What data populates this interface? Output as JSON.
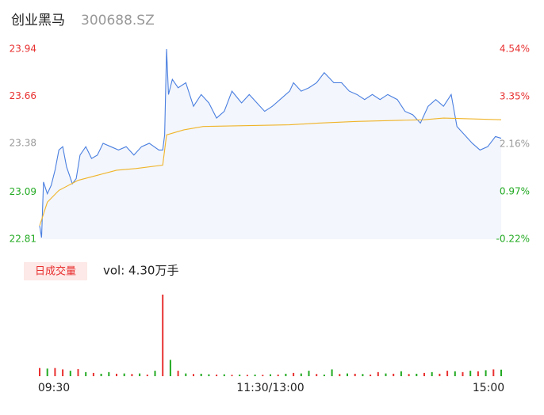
{
  "chart_data": {
    "type": "intraday",
    "title": "创业黑马",
    "subtitle": "300688.SZ",
    "xlim": [
      0,
      240
    ],
    "xticks": [
      {
        "value": 0,
        "label": "09:30"
      },
      {
        "value": 120,
        "label": "11:30/13:00"
      },
      {
        "value": 240,
        "label": "15:00"
      }
    ],
    "ylim": [
      22.81,
      23.94
    ],
    "yticks": [
      22.81,
      23.09,
      23.38,
      23.66,
      23.94
    ],
    "ytick_colors": [
      "#22aa22",
      "#22aa22",
      "#999999",
      "#e83030",
      "#e83030"
    ],
    "y2lim": [
      -0.22,
      4.54
    ],
    "y2ticks": [
      {
        "value": -0.22,
        "label": "-0.22%"
      },
      {
        "value": 0.97,
        "label": "0.97%"
      },
      {
        "value": 2.16,
        "label": "2.16%"
      },
      {
        "value": 3.35,
        "label": "3.35%"
      },
      {
        "value": 4.54,
        "label": "4.54%"
      }
    ],
    "series": [
      {
        "color": "#4a7fe0",
        "x": [
          0,
          1,
          2,
          4,
          6,
          8,
          10,
          12,
          14,
          17,
          19,
          21,
          24,
          27,
          30,
          33,
          37,
          41,
          45,
          49,
          53,
          57,
          62,
          64,
          65,
          66,
          67,
          69,
          72,
          76,
          80,
          84,
          88,
          92,
          96,
          100,
          105,
          109,
          113,
          117,
          121,
          125,
          130,
          132,
          136,
          140,
          144,
          148,
          153,
          157,
          161,
          165,
          169,
          173,
          177,
          181,
          186,
          190,
          194,
          198,
          202,
          206,
          210,
          214,
          217,
          221,
          225,
          229,
          233,
          237,
          240
        ],
        "values": [
          22.89,
          22.82,
          23.15,
          23.08,
          23.13,
          23.22,
          23.34,
          23.36,
          23.24,
          23.14,
          23.17,
          23.31,
          23.36,
          23.29,
          23.31,
          23.38,
          23.36,
          23.34,
          23.36,
          23.31,
          23.36,
          23.38,
          23.34,
          23.34,
          23.43,
          23.94,
          23.67,
          23.76,
          23.71,
          23.74,
          23.6,
          23.67,
          23.62,
          23.53,
          23.57,
          23.69,
          23.62,
          23.67,
          23.62,
          23.57,
          23.6,
          23.64,
          23.69,
          23.74,
          23.69,
          23.71,
          23.74,
          23.8,
          23.74,
          23.74,
          23.69,
          23.67,
          23.64,
          23.67,
          23.64,
          23.67,
          23.64,
          23.57,
          23.55,
          23.5,
          23.6,
          23.64,
          23.6,
          23.67,
          23.48,
          23.43,
          23.38,
          23.34,
          23.36,
          23.42,
          23.41
        ]
      },
      {
        "color": "#f0b429",
        "x": [
          0,
          4,
          10,
          20,
          30,
          40,
          50,
          64,
          66,
          75,
          85,
          130,
          145,
          165,
          200,
          210,
          240
        ],
        "values": [
          22.89,
          23.03,
          23.1,
          23.16,
          23.19,
          23.22,
          23.23,
          23.25,
          23.43,
          23.46,
          23.48,
          23.49,
          23.5,
          23.51,
          23.52,
          23.53,
          23.52
        ]
      }
    ],
    "area_color": "#f3f6fc",
    "volume_label": "日成交量",
    "volume_text": "vol: 4.30万手",
    "volume": {
      "x": [
        0,
        4,
        8,
        12,
        16,
        20,
        24,
        28,
        32,
        36,
        40,
        44,
        48,
        52,
        56,
        60,
        64,
        68,
        72,
        76,
        80,
        84,
        88,
        92,
        96,
        100,
        104,
        108,
        112,
        116,
        120,
        124,
        128,
        132,
        136,
        140,
        144,
        148,
        152,
        156,
        160,
        164,
        168,
        172,
        176,
        180,
        184,
        188,
        192,
        196,
        200,
        204,
        208,
        212,
        216,
        220,
        224,
        228,
        232,
        236,
        240
      ],
      "values": [
        300,
        280,
        300,
        250,
        200,
        260,
        150,
        120,
        90,
        150,
        90,
        100,
        80,
        100,
        60,
        200,
        3000,
        600,
        200,
        100,
        80,
        90,
        70,
        60,
        70,
        50,
        60,
        50,
        60,
        50,
        70,
        60,
        90,
        120,
        100,
        200,
        80,
        60,
        250,
        80,
        100,
        90,
        80,
        60,
        150,
        100,
        90,
        180,
        80,
        90,
        120,
        150,
        90,
        200,
        180,
        150,
        200,
        180,
        220,
        250,
        240
      ],
      "colors": [
        "#e83030",
        "#22aa22",
        "#e83030",
        "#e83030",
        "#22aa22",
        "#e83030",
        "#22aa22",
        "#e83030",
        "#22aa22",
        "#22aa22",
        "#e83030",
        "#22aa22",
        "#e83030",
        "#22aa22",
        "#e83030",
        "#22aa22",
        "#e83030",
        "#22aa22",
        "#e83030",
        "#22aa22",
        "#e83030",
        "#22aa22",
        "#22aa22",
        "#e83030",
        "#22aa22",
        "#e83030",
        "#22aa22",
        "#e83030",
        "#22aa22",
        "#e83030",
        "#22aa22",
        "#e83030",
        "#22aa22",
        "#e83030",
        "#22aa22",
        "#22aa22",
        "#e83030",
        "#22aa22",
        "#22aa22",
        "#e83030",
        "#22aa22",
        "#e83030",
        "#22aa22",
        "#e83030",
        "#e83030",
        "#22aa22",
        "#e83030",
        "#22aa22",
        "#e83030",
        "#22aa22",
        "#e83030",
        "#22aa22",
        "#e83030",
        "#e83030",
        "#22aa22",
        "#e83030",
        "#22aa22",
        "#e83030",
        "#22aa22",
        "#e83030",
        "#22aa22"
      ]
    }
  }
}
